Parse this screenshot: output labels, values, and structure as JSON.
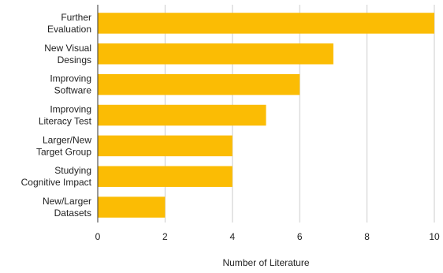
{
  "chart_data": {
    "type": "bar",
    "orientation": "horizontal",
    "categories": [
      [
        "Further",
        "Evaluation"
      ],
      [
        "New Visual",
        "Desings"
      ],
      [
        "Improving",
        "Software"
      ],
      [
        "Improving",
        "Literacy Test"
      ],
      [
        "Larger/New",
        "Target Group"
      ],
      [
        "Studying",
        "Cognitive Impact"
      ],
      [
        "New/Larger",
        "Datasets"
      ]
    ],
    "values": [
      10,
      7,
      6,
      5,
      4,
      4,
      2
    ],
    "xlabel": "Number of Literature",
    "ylabel": "",
    "xlim": [
      0,
      10
    ],
    "xticks": [
      "0",
      "2",
      "4",
      "6",
      "8",
      "10"
    ],
    "xtick_values": [
      0,
      2,
      4,
      6,
      8,
      10
    ],
    "grid": true,
    "bar_color": "#FBBC04"
  }
}
